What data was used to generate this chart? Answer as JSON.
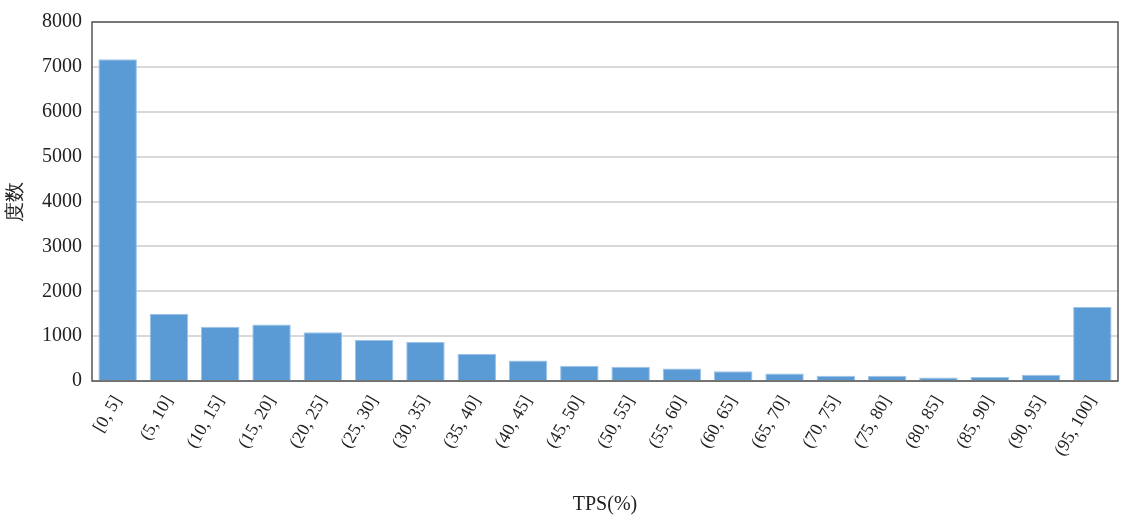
{
  "chart_data": {
    "type": "bar",
    "xlabel": "TPS(%)",
    "ylabel": "度数",
    "categories": [
      "[0, 5]",
      "(5, 10]",
      "(10, 15]",
      "(15, 20]",
      "(20, 25]",
      "(25, 30]",
      "(30, 35]",
      "(35, 40]",
      "(40, 45]",
      "(45, 50]",
      "(50, 55]",
      "(55, 60]",
      "(60, 65]",
      "(65, 70]",
      "(70, 75]",
      "(75, 80]",
      "(80, 85]",
      "(85, 90]",
      "(90, 95]",
      "(95, 100]"
    ],
    "values": [
      7170,
      1500,
      1210,
      1260,
      1090,
      920,
      870,
      610,
      460,
      340,
      320,
      280,
      220,
      170,
      120,
      120,
      80,
      90,
      140,
      1650
    ],
    "color": "#5b9bd5",
    "ylim": [
      0,
      8000
    ],
    "yticks": [
      0,
      1000,
      2000,
      3000,
      4000,
      5000,
      6000,
      7000,
      8000
    ],
    "grid": "y"
  }
}
